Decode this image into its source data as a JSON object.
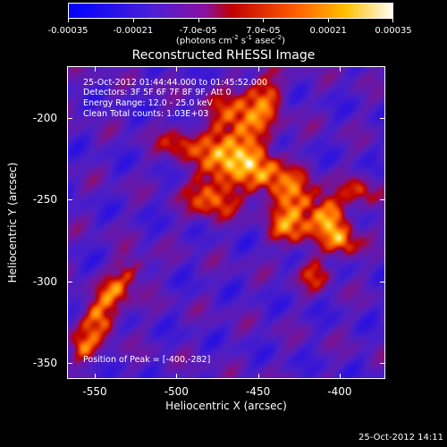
{
  "colorbar": {
    "ticks": [
      "-0.00035",
      "-0.00021",
      "-7.0e-05",
      "7.0e-05",
      "0.00021",
      "0.00035"
    ],
    "units_text": "(photons cm",
    "units_exp1": "-2",
    "units_mid": " s",
    "units_exp2": "-1",
    "units_end": " asec",
    "units_exp3": "-2",
    "units_close": ")"
  },
  "image": {
    "title": "Reconstructed RHESSI Image",
    "time_range": "25-Oct-2012 01:44:44.000 to 01:45:52.000",
    "detectors": "Detectors: 3F 5F 6F 7F 8F 9F, Att 0",
    "energy_range": "Energy Range: 12.0 - 25.0 keV",
    "method_counts": "Clean     Total counts: 1.03E+03",
    "peak": "Position of Peak = [-400,-282]"
  },
  "axes": {
    "xlabel": "Heliocentric X (arcsec)",
    "ylabel": "Heliocentric Y (arcsec)",
    "xticks": [
      "-550",
      "-500",
      "-450",
      "-400"
    ],
    "yticks": [
      "-200",
      "-250",
      "-300",
      "-350"
    ],
    "xlim": [
      -567,
      -372
    ],
    "ylim": [
      -360,
      -168
    ]
  },
  "footer": {
    "timestamp": "25-Oct-2012 14:11"
  },
  "colors": {
    "low": "#0000ff",
    "mid_low": "#7030c0",
    "mid": "#c00000",
    "high": "#ffa000",
    "peak": "#ffffff"
  }
}
